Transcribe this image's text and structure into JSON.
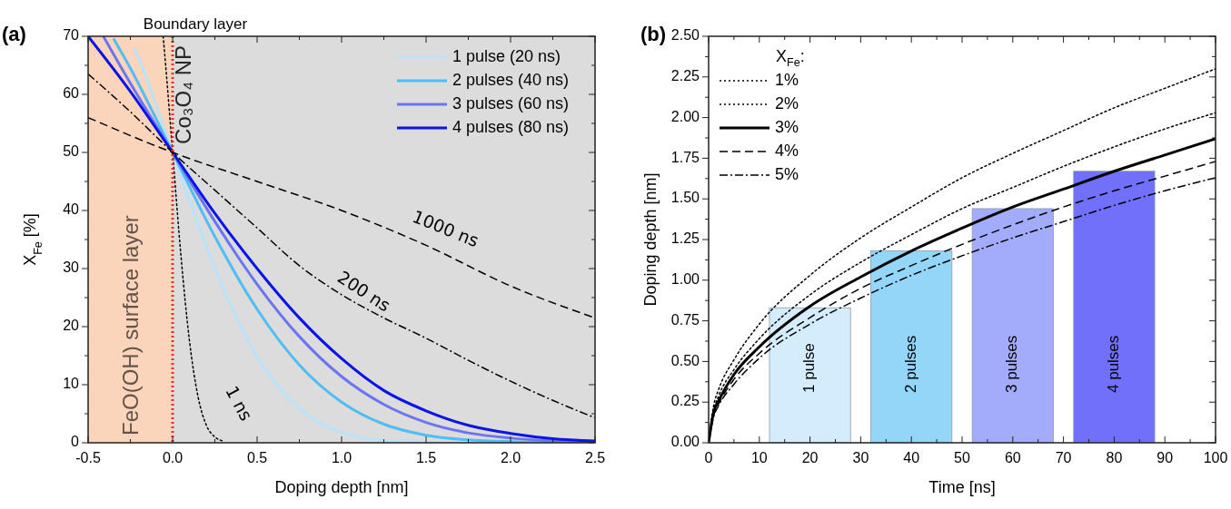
{
  "chart_data": [
    {
      "type": "line",
      "title": "(a)",
      "xlabel": "Doping depth [nm]",
      "ylabel": "X$_{Fe}$ [%]",
      "xlim": [
        -0.5,
        2.5
      ],
      "ylim": [
        0,
        70
      ],
      "xticks": [
        {
          "value": -0.5,
          "label": "-0.5"
        },
        {
          "value": -0.25,
          "label": null
        },
        {
          "value": 0,
          "label": "0.0"
        },
        {
          "value": 0.25,
          "label": null
        },
        {
          "value": 0.5,
          "label": "0.5"
        },
        {
          "value": 0.75,
          "label": null
        },
        {
          "value": 1,
          "label": "1.0"
        },
        {
          "value": 1.25,
          "label": null
        },
        {
          "value": 1.5,
          "label": "1.5"
        },
        {
          "value": 1.75,
          "label": null
        },
        {
          "value": 2,
          "label": "2.0"
        },
        {
          "value": 2.25,
          "label": null
        },
        {
          "value": 2.5,
          "label": "2.5"
        }
      ],
      "yticks": [
        0,
        {
          "value": 5,
          "label": null
        },
        10,
        {
          "value": 15,
          "label": null
        },
        20,
        {
          "value": 25,
          "label": null
        },
        30,
        {
          "value": 35,
          "label": null
        },
        40,
        {
          "value": 45,
          "label": null
        },
        50,
        {
          "value": 55,
          "label": null
        },
        60,
        {
          "value": 65,
          "label": null
        },
        70
      ],
      "grid": false,
      "legend": "top right",
      "bands": [
        {
          "axis": "x",
          "from": -0.5,
          "to": 0,
          "label": "FeO(OH) surface layer",
          "color": "#fad5bc"
        },
        {
          "axis": "x",
          "from": 0,
          "to": 2.5,
          "label": "Co₃O₄ NP",
          "color": "#dcdcdc"
        }
      ],
      "ref_lines": [
        {
          "axis": "x",
          "value": 0,
          "label": "Boundary layer",
          "color": "#e8312a",
          "line_style": "dotted"
        }
      ],
      "annotations": [
        "1000 ns",
        "200 ns",
        "1 ns"
      ],
      "series": [
        {
          "name": "1 pulse (20 ns)",
          "color": "#b9e3fb",
          "line_style": "solid",
          "x": [
            -0.23,
            -0.2,
            -0.1,
            0,
            0.25,
            0.5,
            0.75,
            1,
            1.25,
            1.5,
            2,
            2.5
          ],
          "values": [
            68,
            66.2,
            58.3,
            50,
            30,
            14.8,
            5.9,
            1.8,
            0.4,
            0.1,
            0,
            0
          ]
        },
        {
          "name": "2 pulses (40 ns)",
          "color": "#4fbef5",
          "line_style": "solid",
          "x": [
            -0.35,
            -0.25,
            0,
            0.25,
            0.5,
            0.75,
            1,
            1.25,
            1.5,
            1.75,
            2,
            2.5
          ],
          "values": [
            69.6,
            64.5,
            50,
            35.5,
            23,
            13.4,
            7,
            3.2,
            1.3,
            0.5,
            0.2,
            0
          ]
        },
        {
          "name": "3 pulses (60 ns)",
          "color": "#6b74f2",
          "line_style": "solid",
          "x": [
            -0.41,
            -0.25,
            0,
            0.25,
            0.5,
            0.75,
            1,
            1.25,
            1.5,
            1.75,
            2,
            2.5
          ],
          "values": [
            70,
            61.9,
            50,
            38.1,
            27.3,
            18.3,
            11.4,
            6.6,
            3.5,
            1.7,
            0.8,
            0.1
          ]
        },
        {
          "name": "4 pulses (80 ns)",
          "color": "#0a14e6",
          "line_style": "solid",
          "x": [
            -0.5,
            -0.25,
            0,
            0.25,
            0.5,
            0.75,
            1,
            1.25,
            1.5,
            1.75,
            2,
            2.25,
            2.5
          ],
          "values": [
            70,
            60.5,
            50,
            39.5,
            30,
            21.5,
            14.5,
            9,
            5.5,
            3,
            1.6,
            0.7,
            0.3
          ]
        },
        {
          "color": "#000000",
          "line_style": "dotted",
          "x": [
            -0.056,
            -0.04,
            0,
            0.05,
            0.1,
            0.15,
            0.2,
            0.25,
            0.3
          ],
          "values": [
            70,
            64.6,
            50,
            32,
            17.5,
            8,
            3,
            1,
            0.3
          ]
        },
        {
          "color": "#000000",
          "line_style": "dashdot",
          "x": [
            -0.5,
            -0.25,
            0,
            0.25,
            0.5,
            0.75,
            1,
            1.25,
            1.5,
            1.75,
            2,
            2.25,
            2.5
          ],
          "values": [
            63.5,
            57,
            50,
            43.5,
            37,
            30.5,
            25.5,
            21.5,
            18,
            14.2,
            10.6,
            7.3,
            4.3
          ]
        },
        {
          "color": "#000000",
          "line_style": "dashed",
          "x": [
            -0.5,
            0,
            0.5,
            1,
            1.5,
            2,
            2.5
          ],
          "values": [
            56,
            50,
            45,
            40,
            34,
            27,
            21.5
          ]
        }
      ]
    },
    {
      "type": "line",
      "title": "(b)",
      "xlabel": "Time [ns]",
      "ylabel": "Doping depth [nm]",
      "legend_title": "X$_{Fe}$:",
      "xlim": [
        0,
        100
      ],
      "ylim": [
        0,
        2.5
      ],
      "xticks": [
        0,
        {
          "value": 5,
          "label": null
        },
        10,
        {
          "value": 15,
          "label": null
        },
        20,
        {
          "value": 25,
          "label": null
        },
        30,
        {
          "value": 35,
          "label": null
        },
        40,
        {
          "value": 45,
          "label": null
        },
        50,
        {
          "value": 55,
          "label": null
        },
        60,
        {
          "value": 65,
          "label": null
        },
        70,
        {
          "value": 75,
          "label": null
        },
        80,
        {
          "value": 85,
          "label": null
        },
        90,
        {
          "value": 95,
          "label": null
        },
        100
      ],
      "yticks": [
        {
          "value": 0,
          "label": "0.00"
        },
        {
          "value": 0.125,
          "label": null
        },
        {
          "value": 0.25,
          "label": "0.25"
        },
        {
          "value": 0.375,
          "label": null
        },
        {
          "value": 0.5,
          "label": "0.50"
        },
        {
          "value": 0.625,
          "label": null
        },
        {
          "value": 0.75,
          "label": "0.75"
        },
        {
          "value": 0.875,
          "label": null
        },
        {
          "value": 1,
          "label": "1.00"
        },
        {
          "value": 1.125,
          "label": null
        },
        {
          "value": 1.25,
          "label": "1.25"
        },
        {
          "value": 1.375,
          "label": null
        },
        {
          "value": 1.5,
          "label": "1.50"
        },
        {
          "value": 1.625,
          "label": null
        },
        {
          "value": 1.75,
          "label": "1.75"
        },
        {
          "value": 1.875,
          "label": null
        },
        {
          "value": 2,
          "label": "2.00"
        },
        {
          "value": 2.125,
          "label": null
        },
        {
          "value": 2.25,
          "label": "2.25"
        },
        {
          "value": 2.375,
          "label": null
        },
        {
          "value": 2.5,
          "label": "2.50"
        }
      ],
      "grid": false,
      "legend": "top left",
      "annotations": [
        "1 pulse",
        "2 pulses",
        "3 pulses",
        "4 pulses"
      ],
      "x": [
        0,
        1,
        2,
        5,
        10,
        20,
        30,
        40,
        50,
        60,
        70,
        80,
        90,
        100
      ],
      "series": [
        {
          "type": "bar",
          "x": [
            20,
            40,
            60,
            80
          ],
          "values": [
            0.83,
            1.18,
            1.44,
            1.67
          ],
          "colors": [
            "#d4ecfb",
            "#93d6f8",
            "#a3acfb",
            "#7070fb"
          ]
        },
        {
          "name": "1%",
          "color": "#000000",
          "line_style": "dotted",
          "values": [
            0,
            0.23,
            0.33,
            0.51,
            0.73,
            1.03,
            1.26,
            1.45,
            1.63,
            1.78,
            1.92,
            2.06,
            2.18,
            2.3
          ]
        },
        {
          "name": "2%",
          "color": "#000000",
          "line_style": "dotted",
          "values": [
            0,
            0.2,
            0.29,
            0.45,
            0.64,
            0.91,
            1.11,
            1.28,
            1.44,
            1.57,
            1.7,
            1.82,
            1.93,
            2.03
          ]
        },
        {
          "name": "3%",
          "color": "#000000",
          "line_style": "solid",
          "values": [
            0,
            0.19,
            0.26,
            0.42,
            0.59,
            0.84,
            1.02,
            1.18,
            1.32,
            1.45,
            1.56,
            1.67,
            1.77,
            1.87
          ]
        },
        {
          "name": "4%",
          "color": "#000000",
          "line_style": "dashed",
          "values": [
            0,
            0.17,
            0.24,
            0.39,
            0.55,
            0.77,
            0.95,
            1.09,
            1.22,
            1.34,
            1.45,
            1.55,
            1.64,
            1.73
          ]
        },
        {
          "name": "5%",
          "color": "#000000",
          "line_style": "dashdot",
          "values": [
            0,
            0.16,
            0.23,
            0.36,
            0.52,
            0.73,
            0.89,
            1.03,
            1.15,
            1.26,
            1.36,
            1.46,
            1.55,
            1.63
          ]
        }
      ]
    }
  ]
}
